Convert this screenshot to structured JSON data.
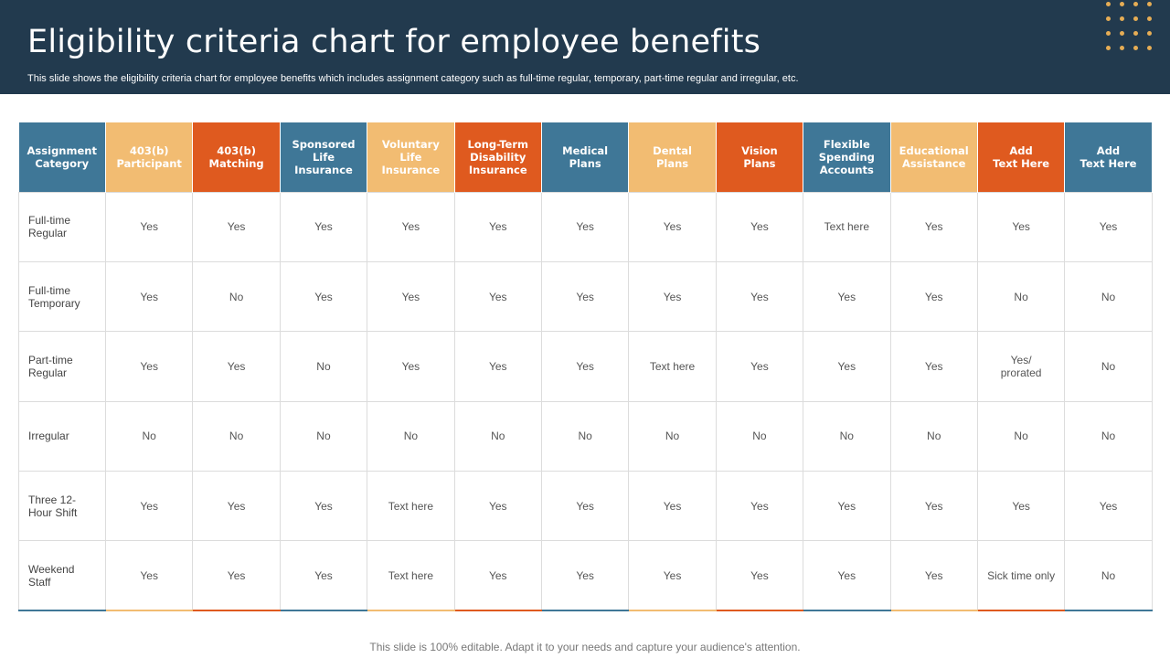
{
  "header": {
    "title": "Eligibility criteria chart for employee benefits",
    "subtitle": "This slide shows the eligibility criteria chart for  employee benefits which includes assignment category such as full-time regular, temporary, part-time regular and irregular, etc."
  },
  "colors": {
    "header_bg": "#223a4e",
    "blue": "#3f7797",
    "orange": "#df5a1f",
    "peach": "#f2bc72",
    "dots": "#e6ad55"
  },
  "table": {
    "columns": [
      {
        "label": "Assignment\nCategory",
        "color": "blue"
      },
      {
        "label": "403(b)\nParticipant",
        "color": "peach"
      },
      {
        "label": "403(b)\nMatching",
        "color": "orange"
      },
      {
        "label": "Sponsored\nLife\nInsurance",
        "color": "blue"
      },
      {
        "label": "Voluntary\nLife\nInsurance",
        "color": "peach"
      },
      {
        "label": "Long-Term\nDisability\nInsurance",
        "color": "orange"
      },
      {
        "label": "Medical\nPlans",
        "color": "blue"
      },
      {
        "label": "Dental\nPlans",
        "color": "peach"
      },
      {
        "label": "Vision\nPlans",
        "color": "orange"
      },
      {
        "label": "Flexible\nSpending\nAccounts",
        "color": "blue"
      },
      {
        "label": "Educational\nAssistance",
        "color": "peach"
      },
      {
        "label": "Add\nText Here",
        "color": "orange"
      },
      {
        "label": "Add\nText Here",
        "color": "blue"
      }
    ],
    "rows": [
      {
        "label": "Full-time\nRegular",
        "cells": [
          "Yes",
          "Yes",
          "Yes",
          "Yes",
          "Yes",
          "Yes",
          "Yes",
          "Yes",
          "Text here",
          "Yes",
          "Yes",
          "Yes"
        ]
      },
      {
        "label": "Full-time\nTemporary",
        "cells": [
          "Yes",
          "No",
          "Yes",
          "Yes",
          "Yes",
          "Yes",
          "Yes",
          "Yes",
          "Yes",
          "Yes",
          "No",
          "No"
        ]
      },
      {
        "label": "Part-time\nRegular",
        "cells": [
          "Yes",
          "Yes",
          "No",
          "Yes",
          "Yes",
          "Yes",
          "Text here",
          "Yes",
          "Yes",
          "Yes",
          "Yes/\nprorated",
          "No"
        ]
      },
      {
        "label": "Irregular",
        "cells": [
          "No",
          "No",
          "No",
          "No",
          "No",
          "No",
          "No",
          "No",
          "No",
          "No",
          "No",
          "No"
        ]
      },
      {
        "label": "Three 12-\nHour Shift",
        "cells": [
          "Yes",
          "Yes",
          "Yes",
          "Text here",
          "Yes",
          "Yes",
          "Yes",
          "Yes",
          "Yes",
          "Yes",
          "Yes",
          "Yes"
        ]
      },
      {
        "label": "Weekend\nStaff",
        "cells": [
          "Yes",
          "Yes",
          "Yes",
          "Text here",
          "Yes",
          "Yes",
          "Yes",
          "Yes",
          "Yes",
          "Yes",
          "Sick time only",
          "No"
        ]
      }
    ]
  },
  "footer": {
    "text": "This slide is 100% editable. Adapt it to your needs and capture your audience's attention."
  }
}
